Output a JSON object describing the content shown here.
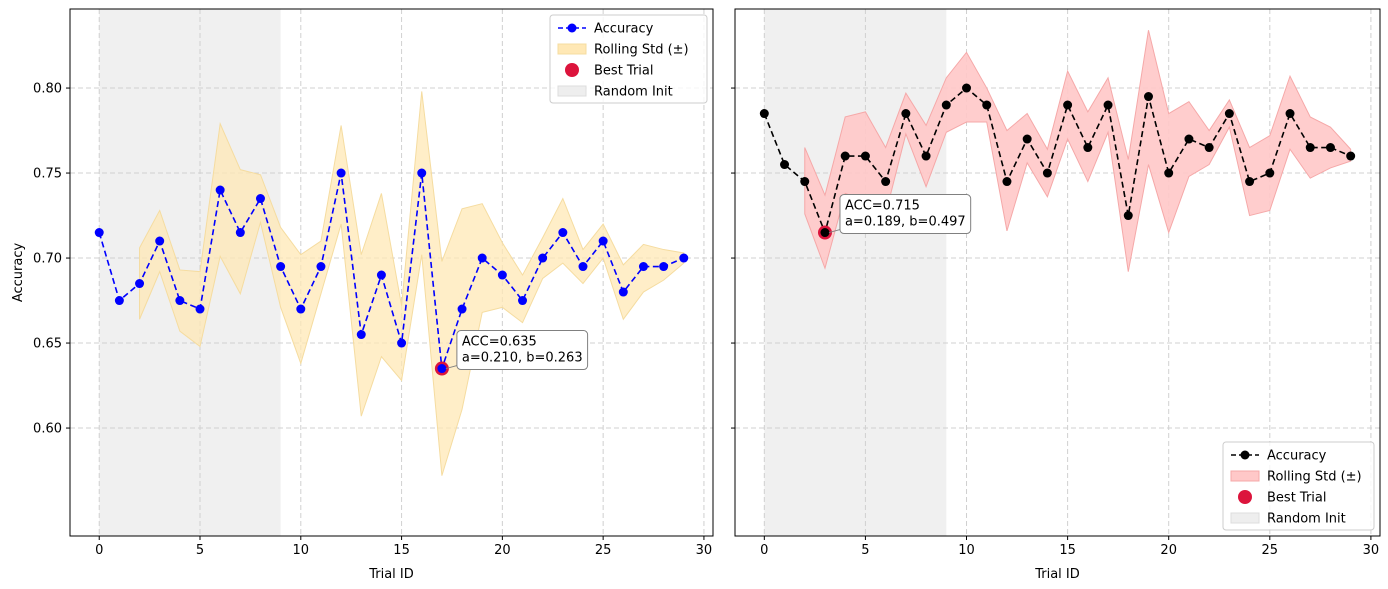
{
  "chart_data": [
    {
      "type": "line",
      "xlabel": "Trial ID",
      "ylabel": "Accuracy",
      "xlim": [
        -1.45,
        30.45
      ],
      "ylim": [
        0.5365,
        0.8465
      ],
      "xticks": [
        0,
        5,
        10,
        15,
        20,
        25,
        30
      ],
      "yticks": [
        0.6,
        0.65,
        0.7,
        0.75,
        0.8
      ],
      "ytick_labels": [
        "0.60",
        "0.65",
        "0.70",
        "0.75",
        "0.80"
      ],
      "grid": true,
      "random_init_span": [
        0,
        9
      ],
      "series": [
        {
          "name": "Accuracy",
          "color": "#0000ff",
          "x": [
            0,
            1,
            2,
            3,
            4,
            5,
            6,
            7,
            8,
            9,
            10,
            11,
            12,
            13,
            14,
            15,
            16,
            17,
            18,
            19,
            20,
            21,
            22,
            23,
            24,
            25,
            26,
            27,
            28,
            29
          ],
          "values": [
            0.715,
            0.675,
            0.685,
            0.71,
            0.675,
            0.67,
            0.74,
            0.715,
            0.735,
            0.695,
            0.67,
            0.695,
            0.75,
            0.655,
            0.69,
            0.65,
            0.75,
            0.635,
            0.67,
            0.7,
            0.69,
            0.675,
            0.7,
            0.715,
            0.695,
            0.71,
            0.68,
            0.695,
            0.695,
            0.7
          ]
        },
        {
          "name": "Rolling Std (±)",
          "color": "#ffe8b5",
          "x": [
            2,
            3,
            4,
            5,
            6,
            7,
            8,
            9,
            10,
            11,
            12,
            13,
            14,
            15,
            16,
            17,
            18,
            19,
            20,
            21,
            22,
            23,
            24,
            25,
            26,
            27,
            28,
            29
          ],
          "upper": [
            0.706,
            0.728,
            0.693,
            0.692,
            0.779,
            0.752,
            0.749,
            0.718,
            0.702,
            0.71,
            0.778,
            0.702,
            0.738,
            0.672,
            0.798,
            0.698,
            0.729,
            0.732,
            0.709,
            0.69,
            0.712,
            0.735,
            0.705,
            0.72,
            0.696,
            0.708,
            0.705,
            0.703
          ],
          "lower": [
            0.664,
            0.692,
            0.657,
            0.648,
            0.701,
            0.679,
            0.721,
            0.671,
            0.638,
            0.679,
            0.72,
            0.607,
            0.642,
            0.628,
            0.702,
            0.572,
            0.611,
            0.668,
            0.671,
            0.662,
            0.688,
            0.697,
            0.685,
            0.7,
            0.664,
            0.68,
            0.687,
            0.697
          ]
        }
      ],
      "best_trial": {
        "x": 17,
        "y": 0.635,
        "label": "Best Trial",
        "color": "#dc143c"
      },
      "annotation": {
        "line1": "ACC=0.635",
        "line2": "a=0.210, b=0.263"
      },
      "legend": {
        "position": "upper right",
        "items": [
          "Accuracy",
          "Rolling Std (±)",
          "Best Trial",
          "Random Init"
        ]
      }
    },
    {
      "type": "line",
      "xlabel": "Trial ID",
      "ylabel": "",
      "xlim": [
        -1.45,
        30.45
      ],
      "ylim": [
        0.5365,
        0.8465
      ],
      "xticks": [
        0,
        5,
        10,
        15,
        20,
        25,
        30
      ],
      "grid": true,
      "random_init_span": [
        0,
        9
      ],
      "series": [
        {
          "name": "Accuracy",
          "color": "#000000",
          "x": [
            0,
            1,
            2,
            3,
            4,
            5,
            6,
            7,
            8,
            9,
            10,
            11,
            12,
            13,
            14,
            15,
            16,
            17,
            18,
            19,
            20,
            21,
            22,
            23,
            24,
            25,
            26,
            27,
            28,
            29
          ],
          "values": [
            0.785,
            0.755,
            0.745,
            0.715,
            0.76,
            0.76,
            0.745,
            0.785,
            0.76,
            0.79,
            0.8,
            0.79,
            0.745,
            0.77,
            0.75,
            0.79,
            0.765,
            0.79,
            0.725,
            0.795,
            0.75,
            0.77,
            0.765,
            0.785,
            0.745,
            0.75,
            0.785,
            0.765,
            0.765,
            0.76
          ]
        },
        {
          "name": "Rolling Std (±)",
          "color": "#ffc8c8",
          "x": [
            2,
            3,
            4,
            5,
            6,
            7,
            8,
            9,
            10,
            11,
            12,
            13,
            14,
            15,
            16,
            17,
            18,
            19,
            20,
            21,
            22,
            23,
            24,
            25,
            26,
            27,
            28,
            29
          ],
          "upper": [
            0.765,
            0.737,
            0.783,
            0.786,
            0.765,
            0.797,
            0.778,
            0.806,
            0.821,
            0.8,
            0.775,
            0.785,
            0.764,
            0.81,
            0.786,
            0.806,
            0.758,
            0.834,
            0.785,
            0.792,
            0.775,
            0.793,
            0.765,
            0.772,
            0.807,
            0.783,
            0.777,
            0.764
          ],
          "lower": [
            0.726,
            0.694,
            0.738,
            0.734,
            0.726,
            0.773,
            0.742,
            0.774,
            0.78,
            0.78,
            0.716,
            0.756,
            0.736,
            0.77,
            0.745,
            0.774,
            0.692,
            0.755,
            0.715,
            0.748,
            0.755,
            0.777,
            0.725,
            0.728,
            0.764,
            0.747,
            0.753,
            0.757
          ]
        }
      ],
      "best_trial": {
        "x": 3,
        "y": 0.715,
        "label": "Best Trial",
        "color": "#dc143c"
      },
      "annotation": {
        "line1": "ACC=0.715",
        "line2": "a=0.189, b=0.497"
      },
      "legend": {
        "position": "lower right",
        "items": [
          "Accuracy",
          "Rolling Std (±)",
          "Best Trial",
          "Random Init"
        ]
      }
    }
  ]
}
